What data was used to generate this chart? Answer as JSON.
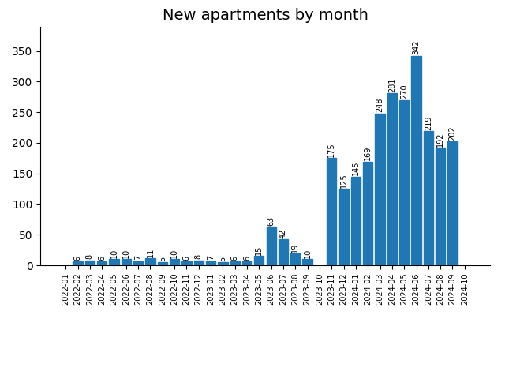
{
  "categories": [
    "2022-01",
    "2022-02",
    "2022-03",
    "2022-04",
    "2022-05",
    "2022-06",
    "2022-07",
    "2022-08",
    "2022-09",
    "2022-10",
    "2022-11",
    "2022-12",
    "2023-01",
    "2023-02",
    "2023-03",
    "2023-04",
    "2023-05",
    "2023-06",
    "2023-07",
    "2023-08",
    "2023-09",
    "2023-10",
    "2023-11",
    "2023-12",
    "2024-01",
    "2024-02",
    "2024-03",
    "2024-04",
    "2024-05",
    "2024-06",
    "2024-07",
    "2024-08",
    "2024-09",
    "2024-10"
  ],
  "values": [
    0,
    6,
    8,
    6,
    10,
    10,
    7,
    11,
    5,
    10,
    6,
    8,
    7,
    5,
    6,
    6,
    15,
    63,
    42,
    19,
    10,
    0,
    175,
    125,
    145,
    169,
    248,
    281,
    270,
    342,
    219,
    192,
    202,
    0
  ],
  "bar_color": "#1f77b4",
  "title": "New apartments by month",
  "title_fontsize": 14,
  "ylim": [
    0,
    390
  ],
  "yticks": [
    0,
    50,
    100,
    150,
    200,
    250,
    300,
    350
  ],
  "label_fontsize": 7,
  "tick_fontsize": 7
}
